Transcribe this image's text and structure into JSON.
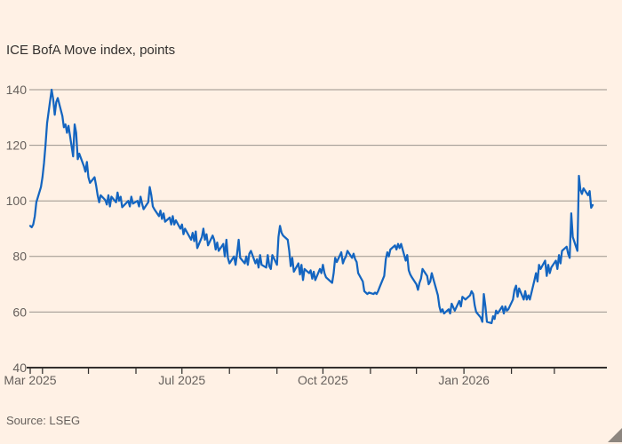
{
  "colors": {
    "background": "#FFF1E5",
    "line": "#1465c0",
    "gridline": "#9a948c",
    "axis": "#33302e",
    "tick_label": "#66605c",
    "title_text": "#33302e",
    "corner_mark": "#8d867f"
  },
  "chart_data": {
    "type": "line",
    "title": "ICE BofA Move index, points",
    "source": "Source: LSEG",
    "legend": "none",
    "grid": "horizontal",
    "ylim": [
      40,
      140
    ],
    "y_ticks": [
      40,
      60,
      80,
      100,
      120,
      140
    ],
    "x_domain": [
      "2025-03-24",
      "2026-03-26"
    ],
    "x_tick_labels": [
      {
        "date": "2025-03-24",
        "label": "Mar 2025"
      },
      {
        "date": "2025-07-01",
        "label": "Jul 2025"
      },
      {
        "date": "2025-10-01",
        "label": "Oct 2025"
      },
      {
        "date": "2026-01-01",
        "label": "Jan 2026"
      }
    ],
    "month_ticks": [
      "2025-03-24",
      "2025-04-01",
      "2025-05-01",
      "2025-06-01",
      "2025-07-01",
      "2025-08-01",
      "2025-09-01",
      "2025-10-01",
      "2025-11-01",
      "2025-12-01",
      "2026-01-01",
      "2026-02-01",
      "2026-03-01"
    ],
    "series": [
      {
        "name": "ICE BofA Move index",
        "color": "#1465c0",
        "points": [
          [
            "2025-03-24",
            91
          ],
          [
            "2025-03-25",
            90.5
          ],
          [
            "2025-03-26",
            91.5
          ],
          [
            "2025-03-27",
            94.5
          ],
          [
            "2025-03-28",
            99.5
          ],
          [
            "2025-03-31",
            105
          ],
          [
            "2025-04-01",
            108.5
          ],
          [
            "2025-04-02",
            113.5
          ],
          [
            "2025-04-03",
            120
          ],
          [
            "2025-04-04",
            128
          ],
          [
            "2025-04-07",
            140
          ],
          [
            "2025-04-08",
            136.5
          ],
          [
            "2025-04-09",
            131
          ],
          [
            "2025-04-10",
            135.5
          ],
          [
            "2025-04-11",
            137
          ],
          [
            "2025-04-14",
            130.5
          ],
          [
            "2025-04-15",
            126.5
          ],
          [
            "2025-04-16",
            127.5
          ],
          [
            "2025-04-17",
            124.5
          ],
          [
            "2025-04-18",
            127
          ],
          [
            "2025-04-21",
            116
          ],
          [
            "2025-04-22",
            127.5
          ],
          [
            "2025-04-23",
            124.5
          ],
          [
            "2025-04-24",
            115
          ],
          [
            "2025-04-25",
            117
          ],
          [
            "2025-04-28",
            112.5
          ],
          [
            "2025-04-29",
            110.5
          ],
          [
            "2025-04-30",
            114
          ],
          [
            "2025-05-01",
            108.5
          ],
          [
            "2025-05-02",
            106.5
          ],
          [
            "2025-05-05",
            108.5
          ],
          [
            "2025-05-06",
            105.5
          ],
          [
            "2025-05-07",
            102
          ],
          [
            "2025-05-08",
            99.5
          ],
          [
            "2025-05-09",
            102
          ],
          [
            "2025-05-12",
            100.3
          ],
          [
            "2025-05-13",
            98.7
          ],
          [
            "2025-05-14",
            102
          ],
          [
            "2025-05-15",
            98
          ],
          [
            "2025-05-16",
            101.5
          ],
          [
            "2025-05-19",
            99.5
          ],
          [
            "2025-05-20",
            103
          ],
          [
            "2025-05-21",
            100
          ],
          [
            "2025-05-22",
            101.5
          ],
          [
            "2025-05-23",
            97.7
          ],
          [
            "2025-05-27",
            100
          ],
          [
            "2025-05-28",
            98
          ],
          [
            "2025-05-29",
            101.5
          ],
          [
            "2025-05-30",
            99
          ],
          [
            "2025-06-02",
            100
          ],
          [
            "2025-06-03",
            98
          ],
          [
            "2025-06-04",
            101.5
          ],
          [
            "2025-06-05",
            99
          ],
          [
            "2025-06-06",
            97
          ],
          [
            "2025-06-09",
            99.5
          ],
          [
            "2025-06-10",
            105
          ],
          [
            "2025-06-11",
            102
          ],
          [
            "2025-06-12",
            98
          ],
          [
            "2025-06-13",
            97
          ],
          [
            "2025-06-16",
            94.5
          ],
          [
            "2025-06-17",
            96.5
          ],
          [
            "2025-06-18",
            93.5
          ],
          [
            "2025-06-19",
            95.5
          ],
          [
            "2025-06-20",
            92.5
          ],
          [
            "2025-06-23",
            94
          ],
          [
            "2025-06-24",
            91.5
          ],
          [
            "2025-06-25",
            94.5
          ],
          [
            "2025-06-26",
            91.5
          ],
          [
            "2025-06-27",
            93
          ],
          [
            "2025-06-30",
            90
          ],
          [
            "2025-07-01",
            91.5
          ],
          [
            "2025-07-02",
            88
          ],
          [
            "2025-07-03",
            90
          ],
          [
            "2025-07-07",
            86
          ],
          [
            "2025-07-08",
            88.5
          ],
          [
            "2025-07-09",
            85.5
          ],
          [
            "2025-07-10",
            89
          ],
          [
            "2025-07-11",
            83
          ],
          [
            "2025-07-14",
            87
          ],
          [
            "2025-07-15",
            90
          ],
          [
            "2025-07-16",
            86
          ],
          [
            "2025-07-17",
            88
          ],
          [
            "2025-07-18",
            84
          ],
          [
            "2025-07-21",
            87.5
          ],
          [
            "2025-07-22",
            86
          ],
          [
            "2025-07-23",
            82.5
          ],
          [
            "2025-07-24",
            85
          ],
          [
            "2025-07-25",
            82
          ],
          [
            "2025-07-28",
            84.5
          ],
          [
            "2025-07-29",
            80
          ],
          [
            "2025-07-30",
            86
          ],
          [
            "2025-07-31",
            79.5
          ],
          [
            "2025-08-01",
            77.5
          ],
          [
            "2025-08-04",
            80
          ],
          [
            "2025-08-05",
            77
          ],
          [
            "2025-08-06",
            81
          ],
          [
            "2025-08-07",
            86
          ],
          [
            "2025-08-08",
            79.5
          ],
          [
            "2025-08-11",
            77.5
          ],
          [
            "2025-08-12",
            80
          ],
          [
            "2025-08-13",
            77
          ],
          [
            "2025-08-14",
            81
          ],
          [
            "2025-08-15",
            82
          ],
          [
            "2025-08-18",
            77.5
          ],
          [
            "2025-08-19",
            79
          ],
          [
            "2025-08-20",
            76
          ],
          [
            "2025-08-21",
            80.5
          ],
          [
            "2025-08-22",
            77
          ],
          [
            "2025-08-25",
            76
          ],
          [
            "2025-08-26",
            80.5
          ],
          [
            "2025-08-27",
            76.5
          ],
          [
            "2025-08-28",
            75.5
          ],
          [
            "2025-08-29",
            80.5
          ],
          [
            "2025-09-01",
            77
          ],
          [
            "2025-09-02",
            87
          ],
          [
            "2025-09-03",
            91
          ],
          [
            "2025-09-04",
            88.5
          ],
          [
            "2025-09-05",
            87.5
          ],
          [
            "2025-09-08",
            86
          ],
          [
            "2025-09-09",
            82
          ],
          [
            "2025-09-10",
            76.5
          ],
          [
            "2025-09-11",
            79.5
          ],
          [
            "2025-09-12",
            74.5
          ],
          [
            "2025-09-15",
            77.5
          ],
          [
            "2025-09-16",
            73.5
          ],
          [
            "2025-09-17",
            77
          ],
          [
            "2025-09-18",
            71.5
          ],
          [
            "2025-09-19",
            75.5
          ],
          [
            "2025-09-22",
            74
          ],
          [
            "2025-09-23",
            75
          ],
          [
            "2025-09-24",
            72
          ],
          [
            "2025-09-25",
            74.5
          ],
          [
            "2025-09-26",
            71.5
          ],
          [
            "2025-09-29",
            75.5
          ],
          [
            "2025-09-30",
            74
          ],
          [
            "2025-10-01",
            77
          ],
          [
            "2025-10-02",
            74
          ],
          [
            "2025-10-03",
            72.5
          ],
          [
            "2025-10-06",
            71
          ],
          [
            "2025-10-07",
            70.5
          ],
          [
            "2025-10-08",
            74
          ],
          [
            "2025-10-09",
            79.5
          ],
          [
            "2025-10-10",
            78
          ],
          [
            "2025-10-13",
            81.5
          ],
          [
            "2025-10-14",
            77.5
          ],
          [
            "2025-10-15",
            79
          ],
          [
            "2025-10-16",
            80
          ],
          [
            "2025-10-17",
            82
          ],
          [
            "2025-10-20",
            79.5
          ],
          [
            "2025-10-21",
            81
          ],
          [
            "2025-10-22",
            79
          ],
          [
            "2025-10-23",
            78
          ],
          [
            "2025-10-24",
            74
          ],
          [
            "2025-10-27",
            71
          ],
          [
            "2025-10-28",
            67.5
          ],
          [
            "2025-10-29",
            67
          ],
          [
            "2025-10-30",
            66.5
          ],
          [
            "2025-10-31",
            67
          ],
          [
            "2025-11-03",
            66.5
          ],
          [
            "2025-11-04",
            67
          ],
          [
            "2025-11-05",
            66.5
          ],
          [
            "2025-11-06",
            67.5
          ],
          [
            "2025-11-07",
            69
          ],
          [
            "2025-11-10",
            73
          ],
          [
            "2025-11-11",
            79
          ],
          [
            "2025-11-12",
            81.5
          ],
          [
            "2025-11-13",
            80
          ],
          [
            "2025-11-14",
            82.5
          ],
          [
            "2025-11-17",
            84
          ],
          [
            "2025-11-18",
            82.5
          ],
          [
            "2025-11-19",
            84.5
          ],
          [
            "2025-11-20",
            83
          ],
          [
            "2025-11-21",
            84.5
          ],
          [
            "2025-11-24",
            78.5
          ],
          [
            "2025-11-25",
            80.5
          ],
          [
            "2025-11-26",
            75
          ],
          [
            "2025-11-27",
            73.5
          ],
          [
            "2025-11-28",
            72.5
          ],
          [
            "2025-12-01",
            70
          ],
          [
            "2025-12-02",
            68
          ],
          [
            "2025-12-03",
            70.5
          ],
          [
            "2025-12-04",
            72
          ],
          [
            "2025-12-05",
            75.5
          ],
          [
            "2025-12-08",
            73
          ],
          [
            "2025-12-09",
            70
          ],
          [
            "2025-12-10",
            71
          ],
          [
            "2025-12-11",
            74
          ],
          [
            "2025-12-12",
            72
          ],
          [
            "2025-12-15",
            66
          ],
          [
            "2025-12-16",
            62
          ],
          [
            "2025-12-17",
            60
          ],
          [
            "2025-12-18",
            61
          ],
          [
            "2025-12-19",
            59.5
          ],
          [
            "2025-12-22",
            61
          ],
          [
            "2025-12-23",
            59.5
          ],
          [
            "2025-12-24",
            63
          ],
          [
            "2025-12-26",
            60.5
          ],
          [
            "2025-12-29",
            64
          ],
          [
            "2025-12-30",
            62
          ],
          [
            "2025-12-31",
            65.5
          ],
          [
            "2026-01-02",
            64.5
          ],
          [
            "2026-01-05",
            66
          ],
          [
            "2026-01-06",
            67.5
          ],
          [
            "2026-01-07",
            66.5
          ],
          [
            "2026-01-08",
            62.5
          ],
          [
            "2026-01-09",
            60
          ],
          [
            "2026-01-12",
            58
          ],
          [
            "2026-01-13",
            56.5
          ],
          [
            "2026-01-14",
            66.5
          ],
          [
            "2026-01-15",
            62
          ],
          [
            "2026-01-16",
            56.5
          ],
          [
            "2026-01-19",
            56
          ],
          [
            "2026-01-20",
            58.5
          ],
          [
            "2026-01-21",
            57.5
          ],
          [
            "2026-01-22",
            60.5
          ],
          [
            "2026-01-23",
            59.5
          ],
          [
            "2026-01-26",
            62
          ],
          [
            "2026-01-27",
            59.5
          ],
          [
            "2026-01-28",
            62
          ],
          [
            "2026-01-29",
            60.5
          ],
          [
            "2026-01-30",
            61
          ],
          [
            "2026-02-02",
            64.5
          ],
          [
            "2026-02-03",
            68
          ],
          [
            "2026-02-04",
            69.5
          ],
          [
            "2026-02-05",
            65.5
          ],
          [
            "2026-02-06",
            68.5
          ],
          [
            "2026-02-09",
            64.5
          ],
          [
            "2026-02-10",
            67.5
          ],
          [
            "2026-02-11",
            64.5
          ],
          [
            "2026-02-12",
            66
          ],
          [
            "2026-02-13",
            64.5
          ],
          [
            "2026-02-16",
            71.5
          ],
          [
            "2026-02-17",
            74
          ],
          [
            "2026-02-18",
            71
          ],
          [
            "2026-02-19",
            77
          ],
          [
            "2026-02-20",
            75.5
          ],
          [
            "2026-02-23",
            78.5
          ],
          [
            "2026-02-24",
            73
          ],
          [
            "2026-02-25",
            77
          ],
          [
            "2026-02-26",
            74
          ],
          [
            "2026-02-27",
            76
          ],
          [
            "2026-03-02",
            78.5
          ],
          [
            "2026-03-03",
            75.5
          ],
          [
            "2026-03-04",
            80.5
          ],
          [
            "2026-03-05",
            77.5
          ],
          [
            "2026-03-06",
            82
          ],
          [
            "2026-03-09",
            83.5
          ],
          [
            "2026-03-10",
            81
          ],
          [
            "2026-03-11",
            79.5
          ],
          [
            "2026-03-12",
            95.5
          ],
          [
            "2026-03-13",
            87
          ],
          [
            "2026-03-16",
            82
          ],
          [
            "2026-03-17",
            109
          ],
          [
            "2026-03-18",
            104
          ],
          [
            "2026-03-19",
            102.5
          ],
          [
            "2026-03-20",
            104.5
          ],
          [
            "2026-03-23",
            102
          ],
          [
            "2026-03-24",
            103.5
          ],
          [
            "2026-03-25",
            97.5
          ],
          [
            "2026-03-26",
            98.5
          ]
        ]
      }
    ]
  }
}
